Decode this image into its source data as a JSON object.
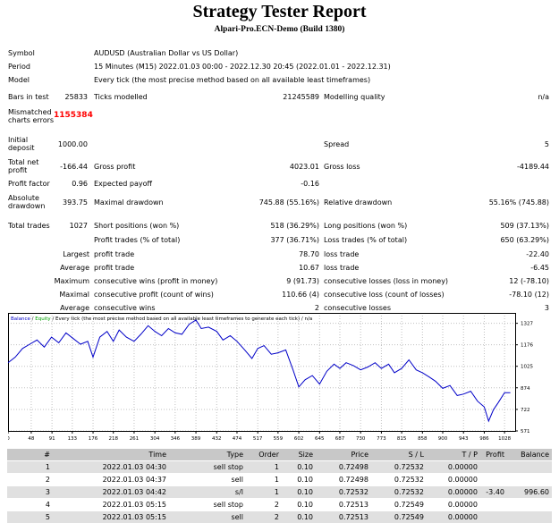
{
  "header": {
    "title": "Strategy Tester Report",
    "subtitle": "Alpari-Pro.ECN-Demo (Build 1380)"
  },
  "summary": {
    "symbol_label": "Symbol",
    "symbol_value": "AUDUSD (Australian Dollar vs US Dollar)",
    "period_label": "Period",
    "period_value": "15 Minutes (M15) 2022.01.03 00:00 - 2022.12.30 20:45 (2022.01.01 - 2022.12.31)",
    "model_label": "Model",
    "model_value": "Every tick (the most precise method based on all available least timeframes)",
    "bars_label": "Bars in test",
    "bars_value": "25833",
    "ticks_label": "Ticks modelled",
    "ticks_value": "21245589",
    "quality_label": "Modelling quality",
    "quality_value": "n/a",
    "mismatch_label_1": "Mismatched",
    "mismatch_label_2": "charts errors",
    "mismatch_value": "1155384",
    "deposit_label_1": "Initial",
    "deposit_label_2": "deposit",
    "deposit_value": "1000.00",
    "spread_label": "Spread",
    "spread_value": "5",
    "netprofit_label_1": "Total net",
    "netprofit_label_2": "profit",
    "netprofit_value": "-166.44",
    "grossprofit_label": "Gross profit",
    "grossprofit_value": "4023.01",
    "grossloss_label": "Gross loss",
    "grossloss_value": "-4189.44",
    "pf_label": "Profit factor",
    "pf_value": "0.96",
    "ep_label": "Expected payoff",
    "ep_value": "-0.16",
    "absdd_label_1": "Absolute",
    "absdd_label_2": "drawdown",
    "absdd_value": "393.75",
    "maxdd_label": "Maximal drawdown",
    "maxdd_value": "745.88 (55.16%)",
    "reldd_label": "Relative drawdown",
    "reldd_value": "55.16% (745.88)",
    "trades_label": "Total trades",
    "trades_value": "1027",
    "short_label": "Short positions (won %)",
    "short_value": "518 (36.29%)",
    "long_label": "Long positions (won %)",
    "long_value": "509 (37.13%)",
    "pt_label": "Profit trades (% of total)",
    "pt_value": "377 (36.71%)",
    "lt_label": "Loss trades (% of total)",
    "lt_value": "650 (63.29%)",
    "largest_label": "Largest",
    "largest_pt_label": "profit trade",
    "largest_pt_value": "78.70",
    "largest_lt_label": "loss trade",
    "largest_lt_value": "-22.40",
    "average_label": "Average",
    "average_pt_label": "profit trade",
    "average_pt_value": "10.67",
    "average_lt_label": "loss trade",
    "average_lt_value": "-6.45",
    "maximum_label": "Maximum",
    "max_cw_label": "consecutive wins (profit in money)",
    "max_cw_value": "9 (91.73)",
    "max_cl_label": "consecutive losses (loss in money)",
    "max_cl_value": "12 (-78.10)",
    "maximal_label": "Maximal",
    "mx_cp_label": "consecutive profit (count of wins)",
    "mx_cp_value": "110.66 (4)",
    "mx_cl_label": "consecutive loss (count of losses)",
    "mx_cl_value": "-78.10 (12)",
    "average2_label": "Average",
    "avg_cw_label": "consecutive wins",
    "avg_cw_value": "2",
    "avg_cl_label": "consecutive losses",
    "avg_cl_value": "3"
  },
  "chart_data": {
    "type": "line",
    "legend_balance": "Balance",
    "legend_sep": " / ",
    "legend_equity": "Equity",
    "legend_rest": " / Every tick (the most precise method based on all available least timeframes to generate each tick) / n/a",
    "xlim": [
      0,
      1050
    ],
    "ylim": [
      571,
      1400
    ],
    "x_ticks": [
      "0",
      "48",
      "91",
      "133",
      "176",
      "218",
      "261",
      "304",
      "346",
      "389",
      "432",
      "474",
      "517",
      "559",
      "602",
      "645",
      "687",
      "730",
      "773",
      "815",
      "858",
      "900",
      "943",
      "986",
      "1028"
    ],
    "y_ticks": [
      "1327",
      "1176",
      "1025",
      "874",
      "722",
      "571"
    ],
    "series": [
      {
        "name": "Balance",
        "color": "#0000c8",
        "x": [
          0,
          15,
          30,
          45,
          60,
          75,
          90,
          105,
          120,
          135,
          150,
          165,
          176,
          190,
          205,
          218,
          230,
          245,
          261,
          275,
          290,
          304,
          318,
          332,
          346,
          360,
          375,
          389,
          400,
          415,
          432,
          445,
          460,
          474,
          490,
          505,
          517,
          530,
          545,
          559,
          575,
          590,
          602,
          615,
          630,
          645,
          660,
          675,
          687,
          700,
          715,
          730,
          745,
          760,
          773,
          788,
          800,
          815,
          830,
          845,
          858,
          872,
          885,
          900,
          915,
          930,
          943,
          958,
          972,
          986,
          995,
          1005,
          1015,
          1028,
          1040
        ],
        "y": [
          1050,
          1090,
          1150,
          1180,
          1210,
          1160,
          1230,
          1190,
          1260,
          1220,
          1180,
          1200,
          1090,
          1230,
          1270,
          1200,
          1280,
          1230,
          1200,
          1250,
          1310,
          1270,
          1240,
          1290,
          1260,
          1250,
          1320,
          1350,
          1290,
          1300,
          1270,
          1210,
          1240,
          1200,
          1140,
          1080,
          1150,
          1170,
          1110,
          1120,
          1140,
          1000,
          880,
          930,
          960,
          900,
          990,
          1040,
          1010,
          1050,
          1030,
          1000,
          1020,
          1050,
          1010,
          1040,
          980,
          1010,
          1070,
          1000,
          980,
          950,
          920,
          870,
          890,
          820,
          830,
          850,
          780,
          740,
          640,
          720,
          770,
          840,
          840
        ]
      }
    ]
  },
  "deals": {
    "headers": [
      "#",
      "Time",
      "Type",
      "Order",
      "Size",
      "Price",
      "S / L",
      "T / P",
      "Profit",
      "Balance"
    ],
    "rows": [
      [
        "1",
        "2022.01.03 04:30",
        "sell stop",
        "1",
        "0.10",
        "0.72498",
        "0.72532",
        "0.00000",
        "",
        ""
      ],
      [
        "2",
        "2022.01.03 04:37",
        "sell",
        "1",
        "0.10",
        "0.72498",
        "0.72532",
        "0.00000",
        "",
        ""
      ],
      [
        "3",
        "2022.01.03 04:42",
        "s/l",
        "1",
        "0.10",
        "0.72532",
        "0.72532",
        "0.00000",
        "-3.40",
        "996.60"
      ],
      [
        "4",
        "2022.01.03 05:15",
        "sell stop",
        "2",
        "0.10",
        "0.72513",
        "0.72549",
        "0.00000",
        "",
        ""
      ],
      [
        "5",
        "2022.01.03 05:15",
        "sell",
        "2",
        "0.10",
        "0.72513",
        "0.72549",
        "0.00000",
        "",
        ""
      ]
    ]
  }
}
